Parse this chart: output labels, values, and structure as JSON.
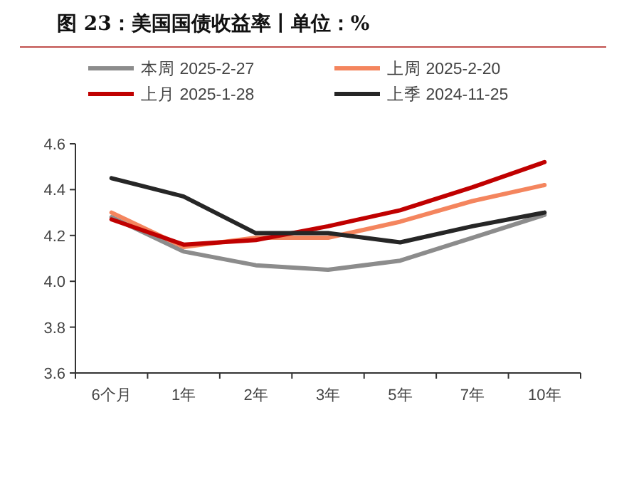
{
  "chart_data": {
    "type": "line",
    "title": "图 23：美国国债收益率丨单位：%",
    "categories": [
      "6个月",
      "1年",
      "2年",
      "3年",
      "5年",
      "7年",
      "10年"
    ],
    "series": [
      {
        "name": "本周 2025-2-27",
        "color": "#8c8c8c",
        "values": [
          4.28,
          4.13,
          4.07,
          4.05,
          4.09,
          4.19,
          4.29
        ]
      },
      {
        "name": "上周 2025-2-20",
        "color": "#f4855e",
        "values": [
          4.3,
          4.15,
          4.19,
          4.19,
          4.26,
          4.35,
          4.42
        ]
      },
      {
        "name": "上月 2025-1-28",
        "color": "#c00000",
        "values": [
          4.27,
          4.16,
          4.18,
          4.24,
          4.31,
          4.41,
          4.52
        ]
      },
      {
        "name": "上季 2024-11-25",
        "color": "#262626",
        "values": [
          4.45,
          4.37,
          4.21,
          4.21,
          4.17,
          4.24,
          4.3
        ]
      }
    ],
    "ylim": [
      3.6,
      4.6
    ],
    "yticks": [
      3.6,
      3.8,
      {
        "value": 4,
        "label": "4.0"
      },
      4.2,
      4.4,
      4.6
    ],
    "legend": "top",
    "grid": false,
    "marker": "none",
    "line_style": "solid"
  }
}
